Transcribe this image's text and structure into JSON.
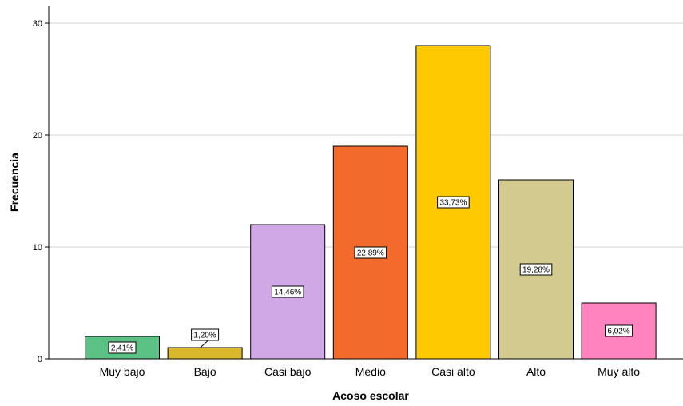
{
  "chart_data": {
    "type": "bar",
    "title": "",
    "xlabel": "Acoso escolar",
    "ylabel": "Frecuencia",
    "ylim": [
      0,
      31
    ],
    "yticks": [
      0,
      10,
      20,
      30
    ],
    "grid": "horizontal",
    "categories": [
      "Muy bajo",
      "Bajo",
      "Casi bajo",
      "Medio",
      "Casi alto",
      "Alto",
      "Muy alto"
    ],
    "values": [
      2,
      1,
      12,
      19,
      28,
      16,
      5
    ],
    "data_labels": [
      "2,41%",
      "1,20%",
      "14,46%",
      "22,89%",
      "33,73%",
      "19,28%",
      "6,02%"
    ],
    "colors": [
      "#5cc184",
      "#d9b82b",
      "#d0a8e6",
      "#f26b2c",
      "#ffc900",
      "#d2ca8f",
      "#ff83be"
    ]
  }
}
